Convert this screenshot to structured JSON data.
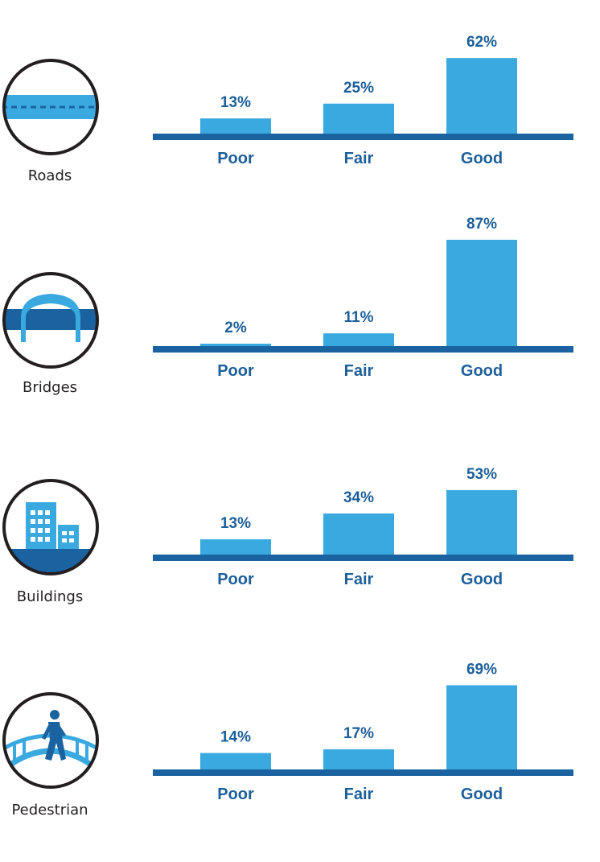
{
  "colors": {
    "bar": "#3aa9e0",
    "baseline": "#1b63a0",
    "label": "#1d5f99",
    "icon_light": "#3aa9e0",
    "icon_dark": "#1b63a0",
    "ring": "#231f20"
  },
  "chart_data": [
    {
      "type": "bar",
      "name": "Roads",
      "icon": "road-icon",
      "categories": [
        "Poor",
        "Fair",
        "Good"
      ],
      "values": [
        13,
        25,
        62
      ],
      "value_labels": [
        "13%",
        "25%",
        "62%"
      ],
      "ylim": [
        0,
        100
      ]
    },
    {
      "type": "bar",
      "name": "Bridges",
      "icon": "bridge-icon",
      "categories": [
        "Poor",
        "Fair",
        "Good"
      ],
      "values": [
        2,
        11,
        87
      ],
      "value_labels": [
        "2%",
        "11%",
        "87%"
      ],
      "ylim": [
        0,
        100
      ]
    },
    {
      "type": "bar",
      "name": "Buildings",
      "icon": "building-icon",
      "categories": [
        "Poor",
        "Fair",
        "Good"
      ],
      "values": [
        13,
        34,
        53
      ],
      "value_labels": [
        "13%",
        "34%",
        "53%"
      ],
      "ylim": [
        0,
        100
      ]
    },
    {
      "type": "bar",
      "name": "Pedestrian",
      "icon": "pedestrian-icon",
      "categories": [
        "Poor",
        "Fair",
        "Good"
      ],
      "values": [
        14,
        17,
        69
      ],
      "value_labels": [
        "14%",
        "17%",
        "69%"
      ],
      "ylim": [
        0,
        100
      ]
    }
  ]
}
